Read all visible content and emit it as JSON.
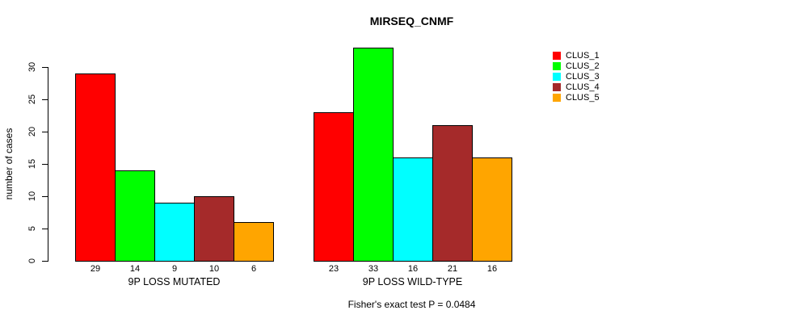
{
  "chart_data": {
    "type": "bar",
    "title": "MIRSEQ_CNMF",
    "ylabel": "number of cases",
    "xlabel": "",
    "footer": "Fisher's exact test P = 0.0484",
    "categories": [
      "9P LOSS MUTATED",
      "9P LOSS WILD-TYPE"
    ],
    "groups": [
      {
        "label": "9P LOSS MUTATED",
        "values": [
          29,
          14,
          9,
          10,
          6
        ]
      },
      {
        "label": "9P LOSS WILD-TYPE",
        "values": [
          23,
          33,
          16,
          21,
          16
        ]
      }
    ],
    "series": [
      {
        "name": "CLUS_1",
        "color": "#ff0000"
      },
      {
        "name": "CLUS_2",
        "color": "#00ff00"
      },
      {
        "name": "CLUS_3",
        "color": "#00ffff"
      },
      {
        "name": "CLUS_4",
        "color": "#a52a2a"
      },
      {
        "name": "CLUS_5",
        "color": "#ffa500"
      }
    ],
    "yticks": [
      0,
      5,
      10,
      15,
      20,
      25,
      30
    ],
    "ylim": [
      0,
      33
    ],
    "grid": false,
    "legend_position": "right",
    "bar_border_color": "#000000",
    "show_value_labels": true
  }
}
